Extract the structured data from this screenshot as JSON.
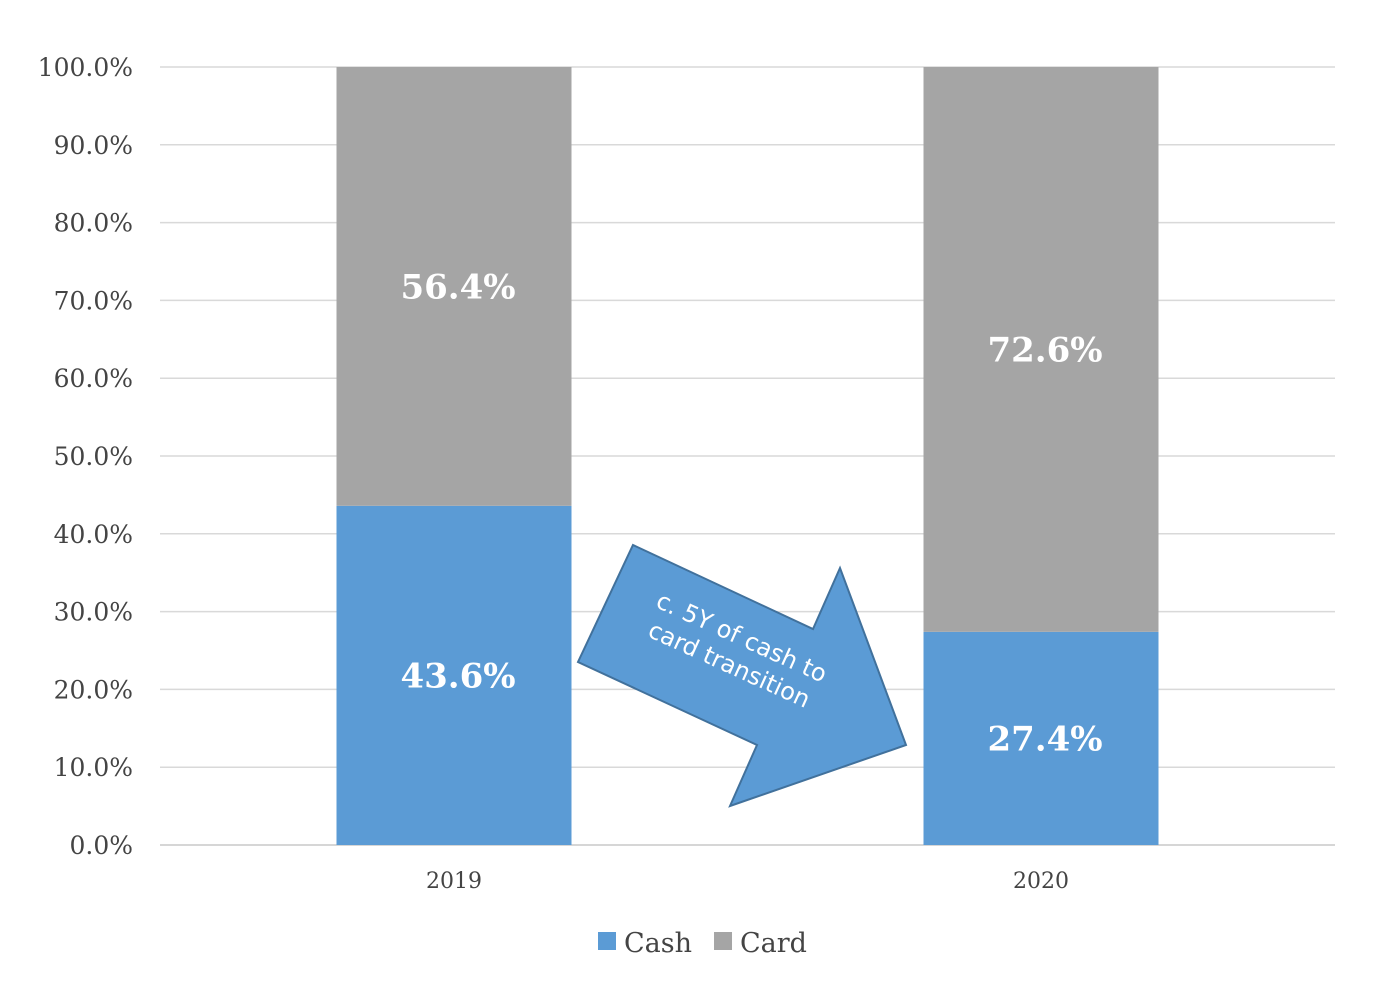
{
  "chart_data": {
    "type": "bar",
    "stacked": true,
    "categories": [
      "2019",
      "2020"
    ],
    "series": [
      {
        "name": "Cash",
        "values": [
          43.6,
          27.4
        ],
        "color": "#5b9bd5"
      },
      {
        "name": "Card",
        "values": [
          56.4,
          72.6
        ],
        "color": "#a5a5a5"
      }
    ],
    "data_labels": [
      [
        "43.6%",
        "27.4%"
      ],
      [
        "56.4%",
        "72.6%"
      ]
    ],
    "ylim": [
      0,
      100
    ],
    "y_ticks": [
      0,
      10,
      20,
      30,
      40,
      50,
      60,
      70,
      80,
      90,
      100
    ],
    "y_tick_labels": [
      "0.0%",
      "10.0%",
      "20.0%",
      "30.0%",
      "40.0%",
      "50.0%",
      "60.0%",
      "70.0%",
      "80.0%",
      "90.0%",
      "100.0%"
    ],
    "grid": true,
    "legend_position": "bottom",
    "annotation": {
      "lines": [
        "c. 5Y of cash to",
        "card transition"
      ],
      "shape": "arrow",
      "color": "#5b9bd5"
    }
  }
}
